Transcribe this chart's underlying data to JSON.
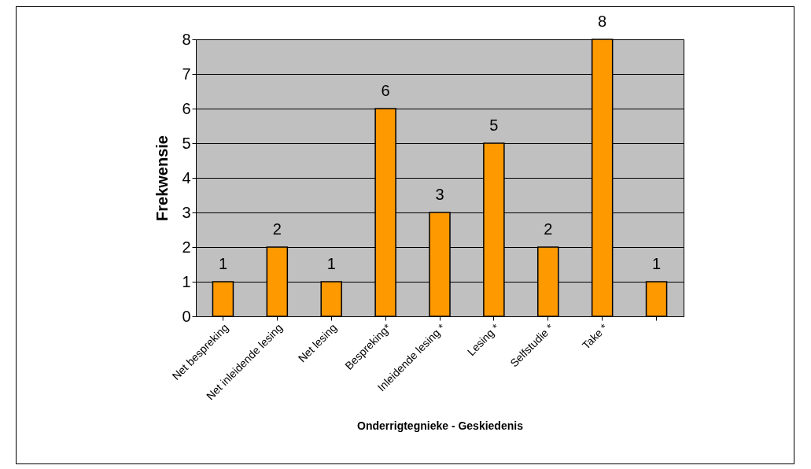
{
  "chart_data": {
    "type": "bar",
    "xlabel": "Onderrigtegnieke - Geskiedenis",
    "ylabel": "Frekwensie",
    "categories": [
      "Net bespreking",
      "Net inleidende lesing",
      "Net lesing",
      "Bespreking*",
      "Inleidende lesing *",
      "Lesing *",
      "Selfstudie *",
      "Take *",
      null
    ],
    "values": [
      1,
      2,
      1,
      6,
      3,
      5,
      2,
      8,
      1
    ],
    "color": "#ff9900",
    "ylim": [
      0,
      8
    ],
    "yticks": [
      0,
      1,
      2,
      3,
      4,
      5,
      6,
      7,
      8
    ],
    "grid": "y",
    "data_labels": true
  }
}
